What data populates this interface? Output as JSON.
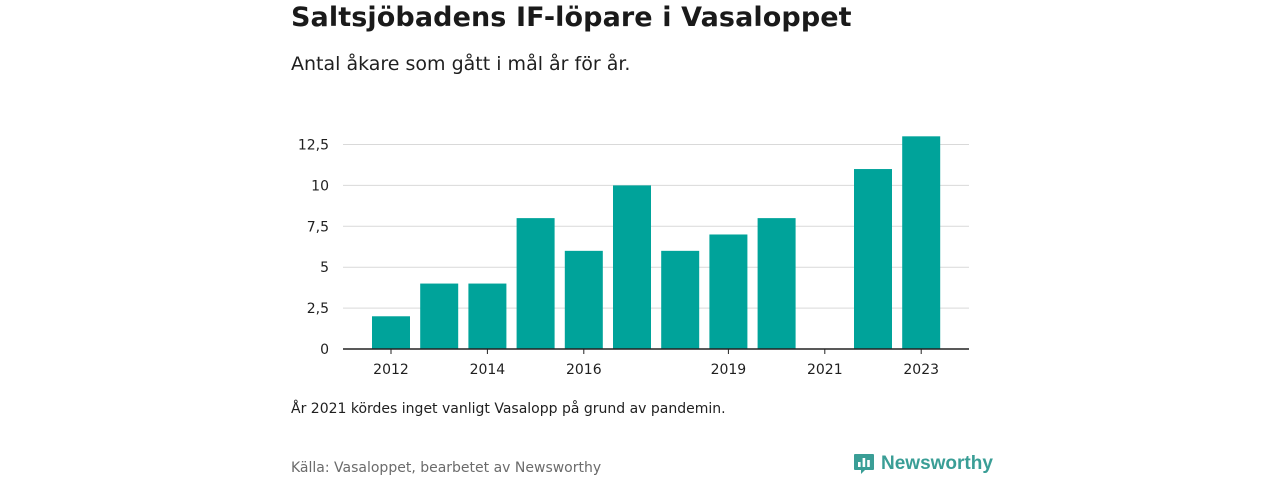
{
  "title": "Saltsjöbadens IF-löpare i Vasaloppet",
  "subtitle": "Antal åkare som gått i mål år för år.",
  "note": "År 2021 kördes inget vanligt Vasalopp på grund av pandemin.",
  "source": "Källa: Vasaloppet, bearbetet av Newsworthy",
  "brand": {
    "name": "Newsworthy",
    "icon": "newsworthy-logo-icon",
    "color": "#3a9e96"
  },
  "chart_data": {
    "type": "bar",
    "categories": [
      "2012",
      "2013",
      "2014",
      "2015",
      "2016",
      "2017",
      "2018",
      "2019",
      "2020",
      "2021",
      "2022",
      "2023"
    ],
    "values": [
      2,
      4,
      4,
      8,
      6,
      10,
      6,
      7,
      8,
      0,
      11,
      13
    ],
    "x_tick_labels": [
      "2012",
      "2014",
      "2016",
      "2019",
      "2021",
      "2023"
    ],
    "y_ticks": [
      0,
      2.5,
      5,
      7.5,
      10,
      12.5
    ],
    "y_tick_labels": [
      "0",
      "2,5",
      "5",
      "7,5",
      "10",
      "12,5"
    ],
    "ylim": [
      0,
      13
    ],
    "grid": true,
    "bar_color": "#00a39a"
  }
}
